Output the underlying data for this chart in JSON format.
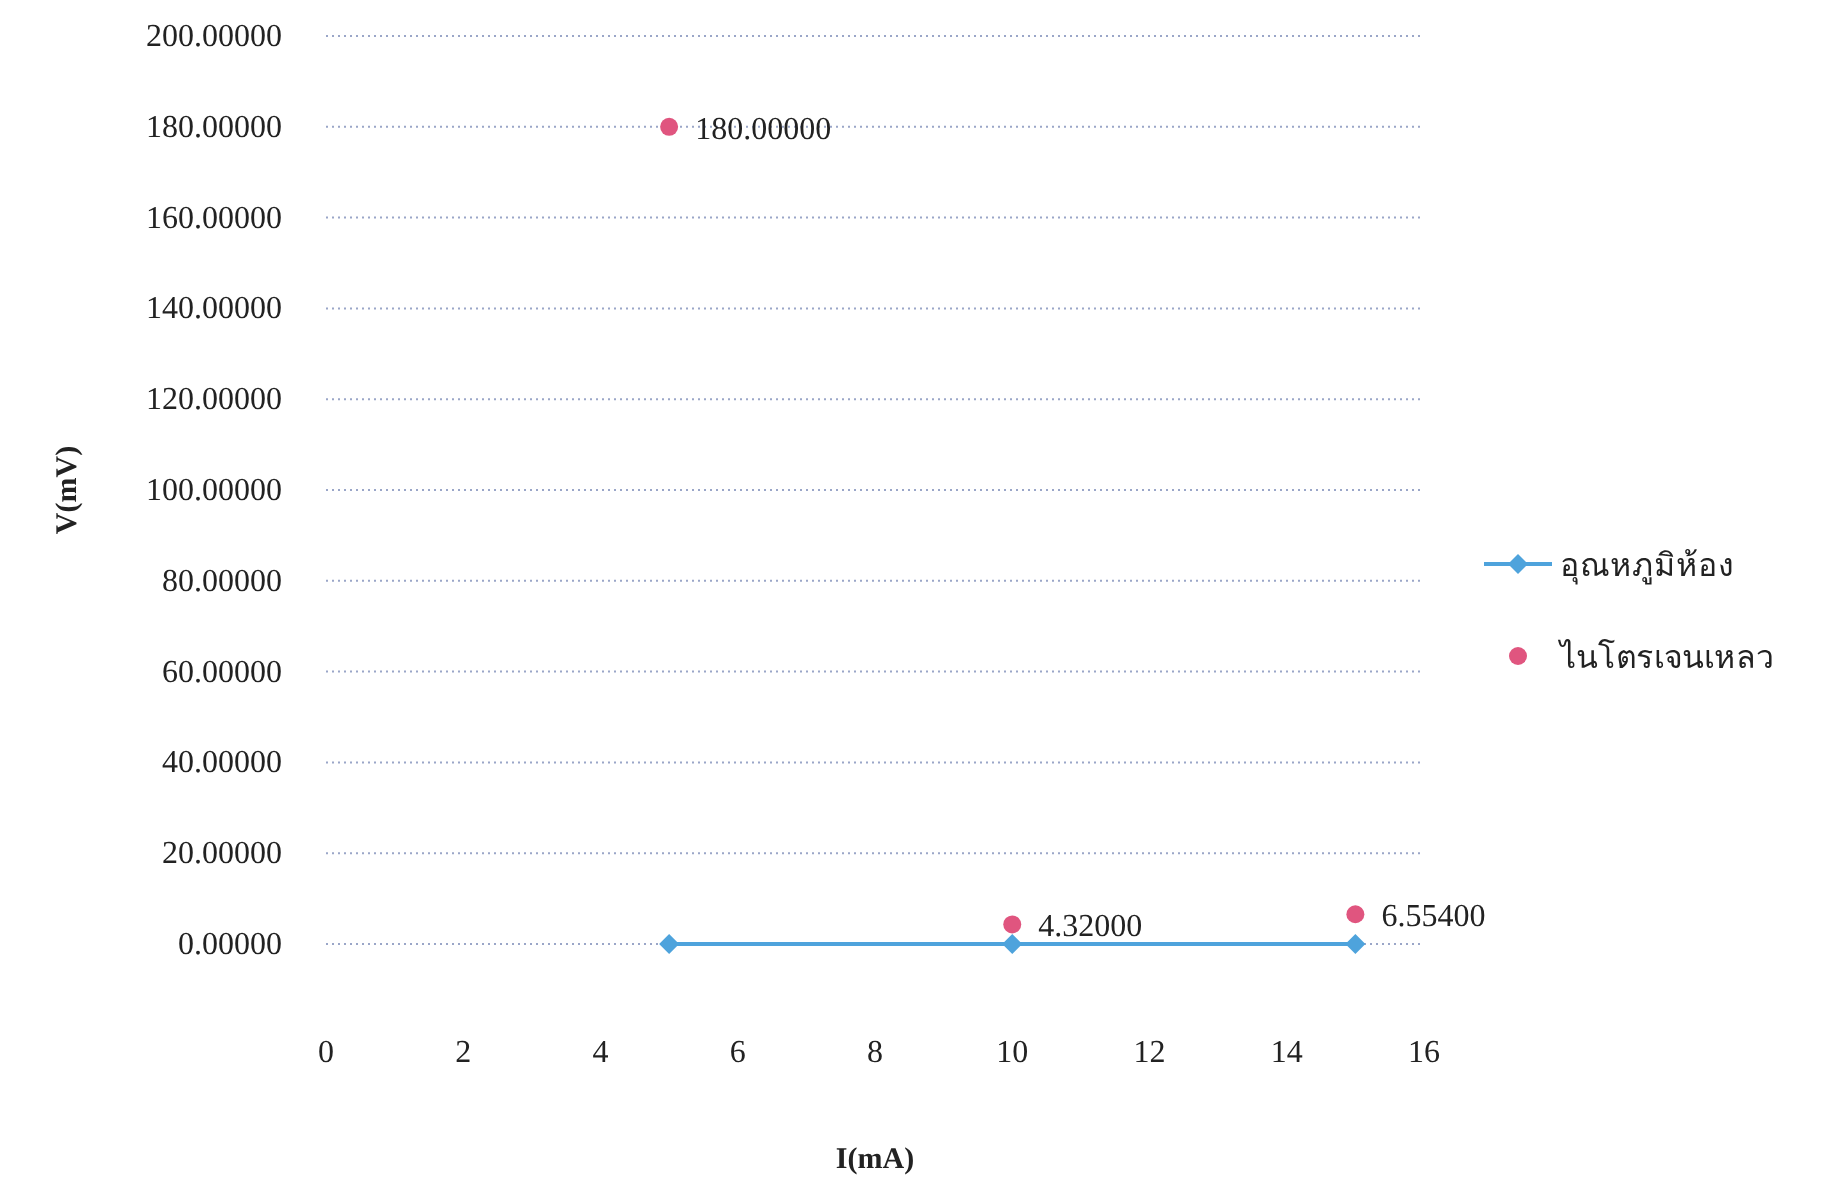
{
  "chart_data": {
    "type": "line",
    "xlabel": "I(mA)",
    "ylabel": "V(mV)",
    "xlim": [
      0,
      16
    ],
    "xticks": [
      0,
      2,
      4,
      6,
      8,
      10,
      12,
      14,
      16
    ],
    "ylim": [
      0,
      200
    ],
    "yticks": [
      {
        "value": 0,
        "label": "0.00000"
      },
      {
        "value": 20,
        "label": "20.00000"
      },
      {
        "value": 40,
        "label": "40.00000"
      },
      {
        "value": 60,
        "label": "60.00000"
      },
      {
        "value": 80,
        "label": "80.00000"
      },
      {
        "value": 100,
        "label": "100.00000"
      },
      {
        "value": 120,
        "label": "120.00000"
      },
      {
        "value": 140,
        "label": "140.00000"
      },
      {
        "value": 160,
        "label": "160.00000"
      },
      {
        "value": 180,
        "label": "180.00000"
      },
      {
        "value": 200,
        "label": "200.00000"
      }
    ],
    "grid": "y",
    "legend": "right",
    "series": [
      {
        "name": "อุณหภูมิห้อง",
        "color": "#4ea3dc",
        "marker": "diamond",
        "line_style": "solid",
        "x": [
          5,
          10,
          15
        ],
        "values": [
          0,
          0,
          0
        ]
      },
      {
        "name": "ไนโตรเจนเหลว",
        "type": "scatter",
        "color": "#e0557f",
        "marker": "circle",
        "x": [
          5,
          10,
          15
        ],
        "values": [
          180,
          4.32,
          6.554
        ],
        "value_labels": [
          "180.00000",
          "4.32000",
          "6.55400"
        ]
      }
    ]
  }
}
